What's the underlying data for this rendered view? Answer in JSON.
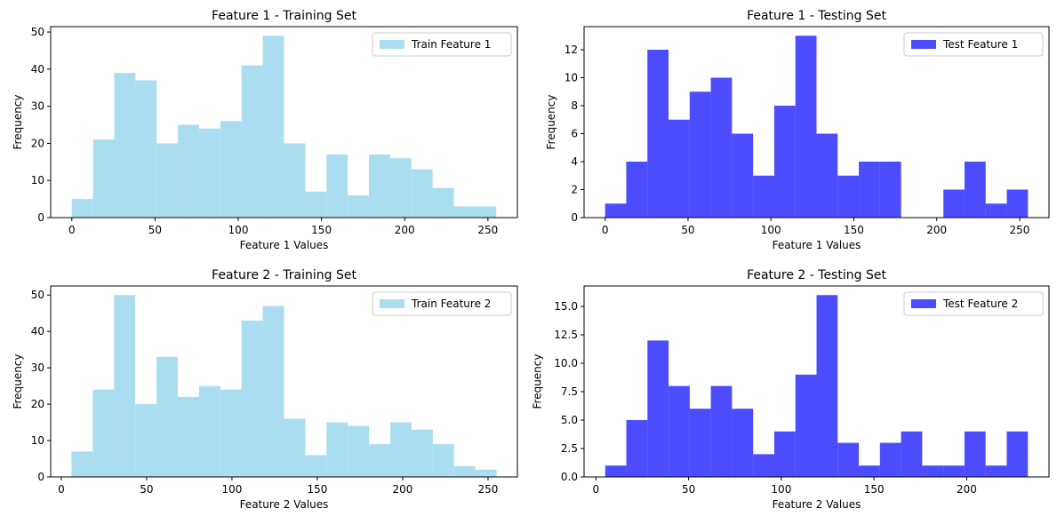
{
  "figure": {
    "background": "#ffffff"
  },
  "chart_data": [
    {
      "type": "bar",
      "title": "Feature 1 - Training Set",
      "xlabel": "Feature 1 Values",
      "ylabel": "Frequency",
      "xlim": [
        -12.7,
        267.7
      ],
      "ylim": [
        0,
        51.45
      ],
      "xticks": [
        0,
        50,
        100,
        150,
        200,
        250
      ],
      "yticks": [
        0,
        10,
        20,
        30,
        40,
        50
      ],
      "ytick_labels": [
        "0",
        "10",
        "20",
        "30",
        "40",
        "50"
      ],
      "bin_start": 0,
      "bin_width": 12.75,
      "values": [
        5,
        21,
        39,
        37,
        20,
        25,
        24,
        26,
        41,
        49,
        20,
        7,
        17,
        6,
        17,
        16,
        13,
        8,
        3,
        3
      ],
      "color": "#87CEEB",
      "opacity": 0.7,
      "legend": "Train Feature 1",
      "legend_position": "upper right",
      "grid": false
    },
    {
      "type": "bar",
      "title": "Feature 1 - Testing Set",
      "xlabel": "Feature 1 Values",
      "ylabel": "Frequency",
      "xlim": [
        -12.7,
        267.7
      ],
      "ylim": [
        0,
        13.65
      ],
      "xticks": [
        0,
        50,
        100,
        150,
        200,
        250
      ],
      "yticks": [
        0,
        2,
        4,
        6,
        8,
        10,
        12
      ],
      "ytick_labels": [
        "0",
        "2",
        "4",
        "6",
        "8",
        "10",
        "12"
      ],
      "bin_start": 0,
      "bin_width": 12.75,
      "values": [
        1,
        4,
        12,
        7,
        9,
        10,
        6,
        3,
        8,
        13,
        6,
        3,
        4,
        4,
        0,
        0,
        2,
        4,
        1,
        2
      ],
      "color": "#0000FF",
      "opacity": 0.7,
      "legend": "Test Feature 1",
      "legend_position": "upper right",
      "grid": false
    },
    {
      "type": "bar",
      "title": "Feature 2 - Training Set",
      "xlabel": "Feature 2 Values",
      "ylabel": "Frequency",
      "xlim": [
        -6.2,
        267.2
      ],
      "ylim": [
        0,
        52.5
      ],
      "xticks": [
        0,
        50,
        100,
        150,
        200,
        250
      ],
      "yticks": [
        0,
        10,
        20,
        30,
        40,
        50
      ],
      "ytick_labels": [
        "0",
        "10",
        "20",
        "30",
        "40",
        "50"
      ],
      "bin_start": 6,
      "bin_width": 12.45,
      "values": [
        7,
        24,
        50,
        20,
        33,
        22,
        25,
        24,
        43,
        47,
        16,
        6,
        15,
        14,
        9,
        15,
        13,
        9,
        3,
        2
      ],
      "color": "#87CEEB",
      "opacity": 0.7,
      "legend": "Train Feature 2",
      "legend_position": "upper right",
      "grid": false
    },
    {
      "type": "bar",
      "title": "Feature 2 - Testing Set",
      "xlabel": "Feature 2 Values",
      "ylabel": "Frequency",
      "xlim": [
        -6.4,
        244.4
      ],
      "ylim": [
        0,
        16.8
      ],
      "xticks": [
        0,
        50,
        100,
        150,
        200
      ],
      "yticks": [
        0,
        2.5,
        5,
        7.5,
        10,
        12.5,
        15
      ],
      "ytick_labels": [
        "0.0",
        "2.5",
        "5.0",
        "7.5",
        "10.0",
        "12.5",
        "15.0"
      ],
      "bin_start": 5,
      "bin_width": 11.4,
      "values": [
        1,
        5,
        12,
        8,
        6,
        8,
        6,
        2,
        4,
        9,
        16,
        3,
        1,
        3,
        4,
        1,
        1,
        4,
        1,
        4
      ],
      "color": "#0000FF",
      "opacity": 0.7,
      "legend": "Test Feature 2",
      "legend_position": "upper right",
      "grid": false
    }
  ]
}
